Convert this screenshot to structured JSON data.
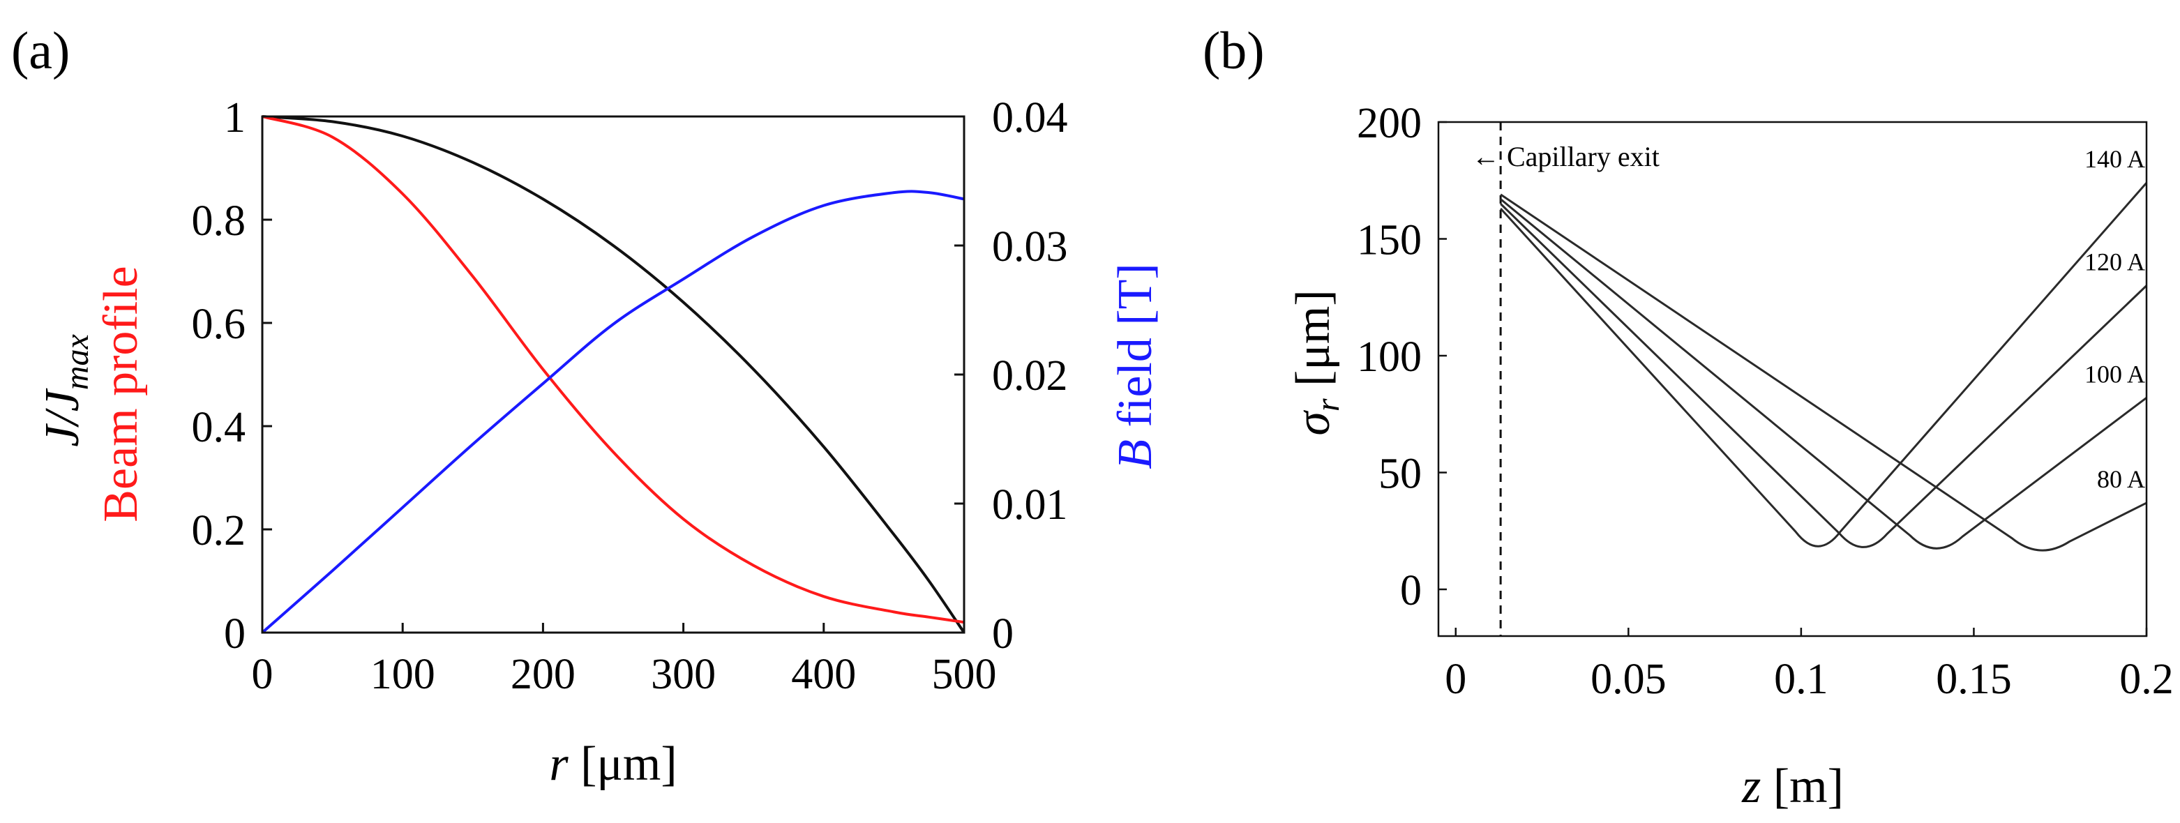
{
  "chart_data": [
    {
      "panel_label": "(a)",
      "type": "line",
      "x": [
        0,
        50,
        100,
        150,
        200,
        250,
        300,
        350,
        400,
        450,
        475,
        500
      ],
      "xlim": [
        0,
        500
      ],
      "ylim_left": [
        0,
        1
      ],
      "ylim_right": [
        0,
        0.04
      ],
      "xticks": [
        "0",
        "100",
        "200",
        "300",
        "400",
        "500"
      ],
      "yticks_left": [
        "0",
        "0.2",
        "0.4",
        "0.6",
        "0.8",
        "1"
      ],
      "yticks_right": [
        "0",
        "0.01",
        "0.02",
        "0.03",
        "0.04"
      ],
      "xlabel": {
        "var": "r",
        "unit": " [μm]"
      },
      "ylabel_left_black": {
        "base": "J/J",
        "sub": "max"
      },
      "ylabel_left_red": "Beam profile",
      "ylabel_right": {
        "var": "B",
        "rest": " field [T]"
      },
      "colors": {
        "black": "#111111",
        "red": "#ff1a1a",
        "blue": "#1a1aff"
      },
      "series": [
        {
          "name": "J/J_max",
          "color": "black",
          "axis": "left",
          "values": [
            1.0,
            0.99,
            0.962,
            0.911,
            0.84,
            0.75,
            0.64,
            0.51,
            0.36,
            0.19,
            0.1,
            0.0
          ]
        },
        {
          "name": "Beam profile",
          "color": "red",
          "axis": "left",
          "values": [
            1.0,
            0.96,
            0.85,
            0.69,
            0.51,
            0.35,
            0.22,
            0.13,
            0.07,
            0.04,
            0.03,
            0.02
          ]
        },
        {
          "name": "B field",
          "color": "blue",
          "axis": "right",
          "values": [
            0.0,
            0.0048,
            0.0097,
            0.0146,
            0.0193,
            0.0239,
            0.0274,
            0.0307,
            0.0331,
            0.0341,
            0.0341,
            0.0336
          ]
        }
      ]
    },
    {
      "panel_label": "(b)",
      "type": "line",
      "xlim": [
        -0.005,
        0.2
      ],
      "ylim": [
        -20,
        200
      ],
      "xticks": [
        "0",
        "0.05",
        "0.1",
        "0.15",
        "0.2"
      ],
      "yticks": [
        "0",
        "50",
        "100",
        "150",
        "200"
      ],
      "xlabel": {
        "var": "z",
        "unit": " [m]"
      },
      "ylabel": {
        "var": "σ",
        "sub": "r",
        "unit": " [μm]"
      },
      "annotation": {
        "text": "← Capillary exit",
        "x": 0.013
      },
      "series": [
        {
          "name": "140 A",
          "x": [
            0.013,
            0.105,
            0.2
          ],
          "y": [
            163,
            14,
            174
          ]
        },
        {
          "name": "120 A",
          "x": [
            0.013,
            0.118,
            0.2
          ],
          "y": [
            165,
            14,
            130
          ]
        },
        {
          "name": "100 A",
          "x": [
            0.013,
            0.139,
            0.2
          ],
          "y": [
            167,
            14,
            82
          ]
        },
        {
          "name": "80 A",
          "x": [
            0.013,
            0.169,
            0.2
          ],
          "y": [
            169,
            14,
            37
          ]
        }
      ]
    }
  ]
}
